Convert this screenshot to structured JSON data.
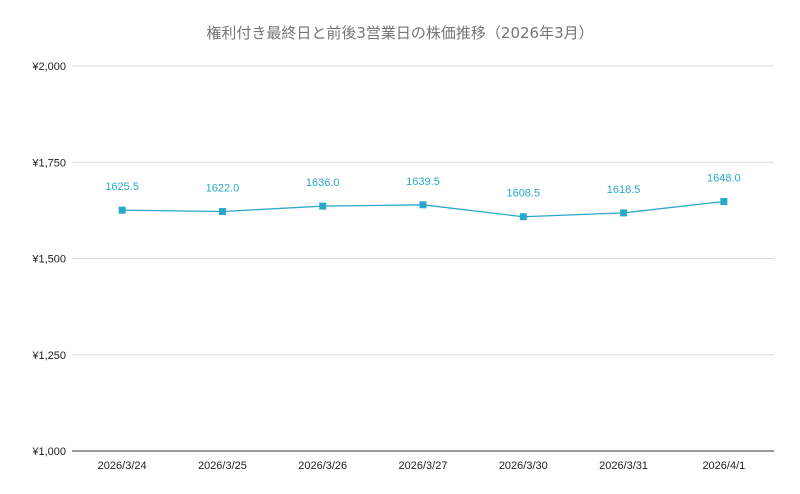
{
  "chart_data": {
    "type": "line",
    "title": "権利付き最終日と前後3営業日の株価推移（2026年3月）",
    "categories": [
      "2026/3/24",
      "2026/3/25",
      "2026/3/26",
      "2026/3/27",
      "2026/3/30",
      "2026/3/31",
      "2026/4/1"
    ],
    "series": [
      {
        "values": [
          1625.5,
          1622.0,
          1636.0,
          1639.5,
          1608.5,
          1618.5,
          1648.0
        ],
        "data_labels": [
          "1625.5",
          "1622.0",
          "1636.0",
          "1639.5",
          "1608.5",
          "1618.5",
          "1648.0"
        ],
        "color": "#2aa8c9",
        "marker": "square"
      }
    ],
    "ylim": [
      1000,
      2000
    ],
    "yticks": [
      1000,
      1250,
      1500,
      1750,
      2000
    ],
    "ytick_labels": [
      "¥1,000",
      "¥1,250",
      "¥1,500",
      "¥1,750",
      "¥2,000"
    ],
    "xlabel": "",
    "ylabel": "",
    "grid": true,
    "legend": "none"
  }
}
